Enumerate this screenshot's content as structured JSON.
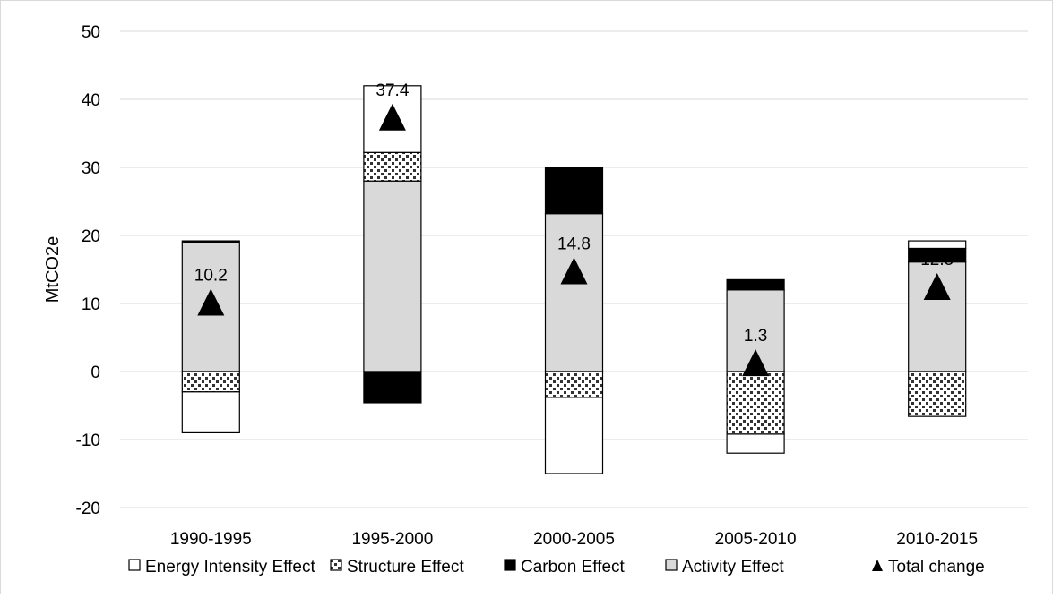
{
  "chart_data": {
    "type": "bar",
    "stacked": true,
    "title": "",
    "xlabel": "",
    "ylabel": "MtCO2e",
    "ylim": [
      -20,
      50
    ],
    "yticks": [
      -20,
      -10,
      0,
      10,
      20,
      30,
      40,
      50
    ],
    "grid": true,
    "legend_position": "bottom",
    "categories": [
      "1990-1995",
      "1995-2000",
      "2000-2005",
      "2005-2010",
      "2010-2015"
    ],
    "series": [
      {
        "name": "Energy Intensity Effect",
        "fill": "#ffffff",
        "values": [
          -6.0,
          9.8,
          -11.2,
          -2.8,
          1.1
        ]
      },
      {
        "name": "Structure Effect",
        "fill": "pattern",
        "values": [
          -3.0,
          4.2,
          -3.8,
          -9.2,
          -6.6
        ]
      },
      {
        "name": "Carbon Effect",
        "fill": "#000000",
        "values": [
          0.3,
          -4.6,
          6.8,
          1.5,
          2.0
        ]
      },
      {
        "name": "Activity Effect",
        "fill": "#d9d9d9",
        "values": [
          18.9,
          28.0,
          23.2,
          12.0,
          16.1
        ]
      }
    ],
    "total_change": {
      "name": "Total change",
      "marker": "triangle",
      "values": [
        10.2,
        37.4,
        14.8,
        1.3,
        12.5
      ],
      "labels": [
        "10.2",
        "37.4",
        "14.8",
        "1.3",
        "12.5"
      ]
    }
  }
}
